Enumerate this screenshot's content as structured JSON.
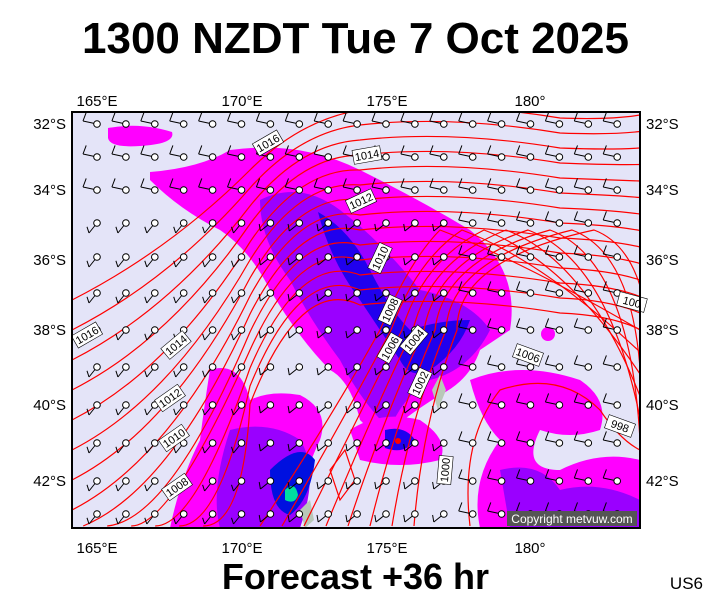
{
  "title": "1300 NZDT Tue 7 Oct 2025",
  "footer": "Forecast +36 hr",
  "model_code": "US6",
  "copyright": "Copyright metvuw.com",
  "map": {
    "lon_ticks": [
      "165°E",
      "170°E",
      "175°E",
      "180°"
    ],
    "lat_ticks": [
      "32°S",
      "34°S",
      "36°S",
      "38°S",
      "40°S",
      "42°S"
    ],
    "isobar_labels": [
      "1016",
      "1014",
      "1012",
      "1010",
      "1008",
      "1006",
      "1004",
      "1002",
      "1000",
      "1006",
      "100",
      "998",
      "1016",
      "1014",
      "1012",
      "1010",
      "1008"
    ],
    "colors": {
      "background": "#e4e4f8",
      "rain_light": "#ff00ff",
      "rain_mid": "#9a00ff",
      "rain_heavy": "#0010e0",
      "rain_extreme": "#00e0a0",
      "isobar": "#ff0000",
      "land": "#b8c8b8"
    }
  }
}
